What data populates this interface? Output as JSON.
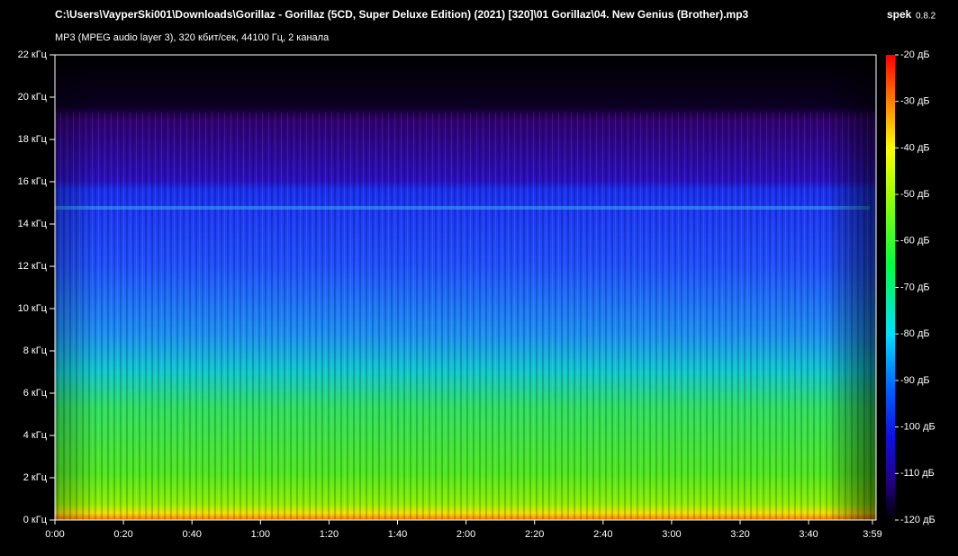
{
  "header": {
    "file_path": "C:\\Users\\VayperSki001\\Downloads\\Gorillaz - Gorillaz (5CD, Super Deluxe Edition) (2021) [320]\\01 Gorillaz\\04. New Genius (Brother).mp3",
    "app_name": "spek",
    "app_version": "0.8.2",
    "info": "MP3 (MPEG audio layer 3), 320 кбит/сек, 44100 Гц, 2 канала"
  },
  "frequency_axis": {
    "labels": [
      "0 кГц",
      "2 кГц",
      "4 кГц",
      "6 кГц",
      "8 кГц",
      "10 кГц",
      "12 кГц",
      "14 кГц",
      "16 кГц",
      "18 кГц",
      "20 кГц",
      "22 кГц"
    ]
  },
  "time_axis": {
    "labels": [
      "0:00",
      "0:20",
      "0:40",
      "1:00",
      "1:20",
      "1:40",
      "2:00",
      "2:20",
      "2:40",
      "3:00",
      "3:20",
      "3:40",
      "3:59"
    ]
  },
  "color_scale": {
    "labels": [
      "-20 дБ",
      "-30 дБ",
      "-40 дБ",
      "-50 дБ",
      "-60 дБ",
      "-70 дБ",
      "-80 дБ",
      "-90 дБ",
      "-100 дБ",
      "-110 дБ",
      "-120 дБ"
    ]
  }
}
